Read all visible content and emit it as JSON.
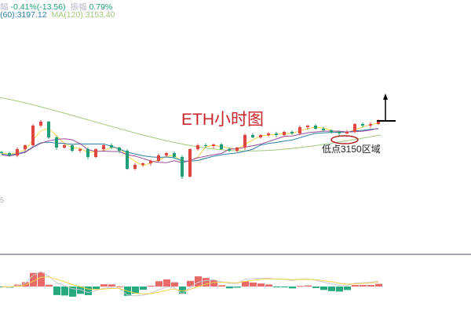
{
  "header": {
    "change_label": "幅",
    "change_value": "-0.41%(-13.56)",
    "amplitude_label": "振幅",
    "amplitude_value": "0.79%",
    "ma60": "(60):3197.12",
    "ma120": "MA(120):3153.40"
  },
  "colors": {
    "up": "#e0453f",
    "down": "#1f9e77",
    "ma_short": "#f2d24b",
    "ma_mid": "#2f7fa5",
    "ma_long": "#9b4c9b",
    "ma120": "#a3c97c",
    "annotation": "#c9252c"
  },
  "chart_data": {
    "type": "candlestick",
    "title": "ETH小时图",
    "y_tick_fragment": "5",
    "closes": [
      2992,
      2971,
      3027,
      3062,
      3237,
      3272,
      3132,
      3041,
      3062,
      3013,
      3027,
      2957,
      3027,
      3062,
      3041,
      3013,
      2852,
      2887,
      2901,
      2922,
      2971,
      2992,
      2957,
      2782,
      3027,
      3062,
      3055,
      3069,
      3027,
      3013,
      3041,
      3153,
      3132,
      3153,
      3167,
      3153,
      3181,
      3167,
      3223,
      3237,
      3209,
      3195,
      3181,
      3167,
      3181,
      3251,
      3237,
      3251,
      3286
    ],
    "annotations": [
      {
        "text": "低点3150区域",
        "type": "ellipse-marker"
      },
      {
        "type": "up-arrow"
      }
    ],
    "indicator": "MACD"
  }
}
